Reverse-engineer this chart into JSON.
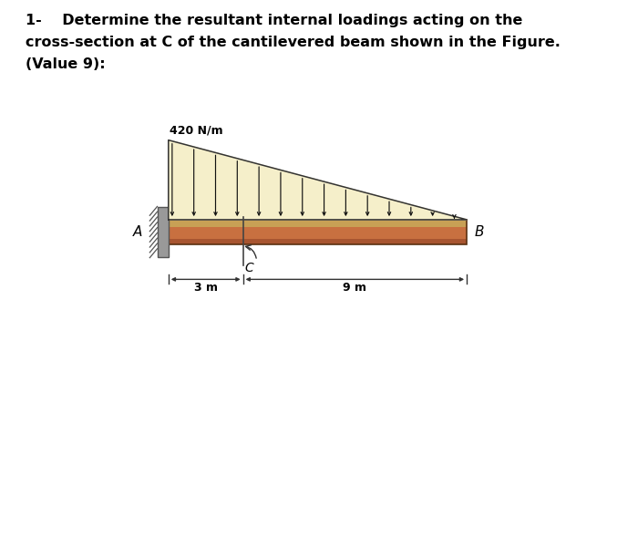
{
  "title_line1": "1-    Determine the resultant internal loadings acting on the",
  "title_line2": "cross-section at C of the cantilevered beam shown in the Figure.",
  "title_line3": "(Value 9):",
  "load_label": "420 N/m",
  "label_A": "A",
  "label_B": "B",
  "label_C": "C",
  "dim_left": "3 m",
  "dim_right": "9 m",
  "bg_color": "#ffffff",
  "diagram_bg": "#f5efca",
  "beam_top_color": "#c8a055",
  "beam_mid_color": "#c87040",
  "beam_bot_color": "#a85530",
  "arrow_color": "#111111",
  "num_arrows": 14,
  "fig_width": 7.0,
  "fig_height": 6.01
}
